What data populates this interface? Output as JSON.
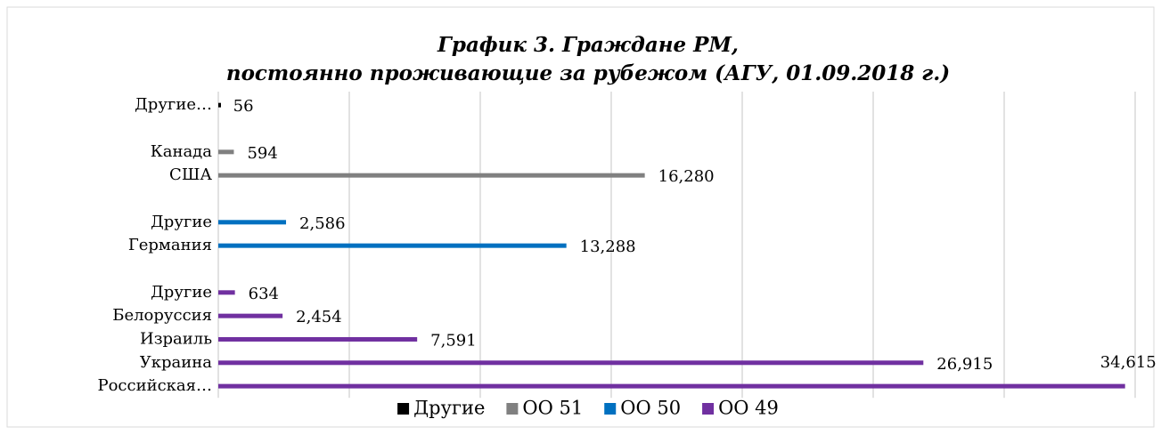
{
  "chart_data": {
    "type": "hbar",
    "title": "График 3. Граждане РМ, постоянно проживающие за рубежом (АГУ, 01.09.2018 г.)",
    "categories": [
      "Другие…",
      null,
      "Канада",
      "США",
      null,
      "Другие",
      "Германия",
      null,
      "Другие",
      "Белоруссия",
      "Израиль",
      "Украина",
      "Российская…"
    ],
    "series": [
      {
        "name": "Другие",
        "color": "#000000",
        "values": [
          56,
          null,
          null,
          null,
          null,
          null,
          null,
          null,
          null,
          null,
          null,
          null,
          null
        ],
        "value_labels": [
          "56",
          null,
          null,
          null,
          null,
          null,
          null,
          null,
          null,
          null,
          null,
          null,
          null
        ]
      },
      {
        "name": "ОО 51",
        "color": "#808080",
        "values": [
          null,
          null,
          594,
          16280,
          null,
          null,
          null,
          null,
          null,
          null,
          null,
          null,
          null
        ],
        "value_labels": [
          null,
          null,
          "594",
          "16,280",
          null,
          null,
          null,
          null,
          null,
          null,
          null,
          null,
          null
        ]
      },
      {
        "name": "ОО 50",
        "color": "#0070c0",
        "values": [
          null,
          null,
          null,
          null,
          null,
          2586,
          13288,
          null,
          null,
          null,
          null,
          null,
          null
        ],
        "value_labels": [
          null,
          null,
          null,
          null,
          null,
          "2,586",
          "13,288",
          null,
          null,
          null,
          null,
          null,
          null
        ]
      },
      {
        "name": "ОО 49",
        "color": "#7030a0",
        "values": [
          null,
          null,
          null,
          null,
          null,
          null,
          null,
          null,
          634,
          2454,
          7591,
          26915,
          34615
        ],
        "value_labels": [
          null,
          null,
          null,
          null,
          null,
          null,
          null,
          null,
          "634",
          "2,454",
          "7,591",
          "26,915",
          "34,615"
        ]
      }
    ],
    "xlim": [
      0,
      35000
    ],
    "xticks": [
      0,
      5000,
      10000,
      15000,
      20000,
      25000,
      30000,
      35000
    ],
    "grid": true,
    "legend": "bottom"
  }
}
